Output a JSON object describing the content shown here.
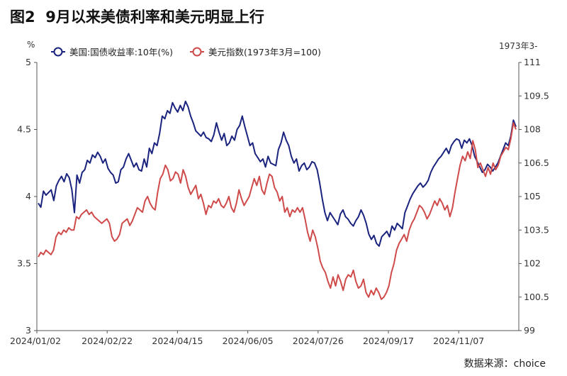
{
  "header": {
    "title": "图2  9月以来美债利率和美元明显上行"
  },
  "footer": {
    "source": "数据来源：choice"
  },
  "colors": {
    "series1": "#1a237e",
    "series2": "#cf4a4a",
    "axis": "#555555"
  },
  "chart_data": {
    "type": "line",
    "title": "图2  9月以来美债利率和美元明显上行",
    "y_left_unit": "%",
    "y_right_unit": "1973年3-",
    "x_ticks": [
      "2024/01/02",
      "2024/02/22",
      "2024/04/15",
      "2024/06/05",
      "2024/07/26",
      "2024/09/17",
      "2024/11/07"
    ],
    "ylim_left": [
      3,
      5
    ],
    "yticks_left": [
      "3",
      "3.5",
      "4",
      "4.5",
      "5"
    ],
    "ylim_right": [
      99,
      111
    ],
    "yticks_right": [
      "99",
      "100.5",
      "102",
      "103.5",
      "105",
      "106.5",
      "108",
      "109.5",
      "111"
    ],
    "legend_position": "top-left",
    "grid": false,
    "series": [
      {
        "name": "美国:国债收益率:10年(%)",
        "axis": "left",
        "values": [
          3.95,
          3.92,
          4.04,
          4.01,
          4.03,
          4.05,
          3.97,
          4.08,
          4.12,
          4.15,
          4.11,
          4.17,
          4.14,
          4.05,
          3.88,
          4.16,
          4.1,
          4.18,
          4.2,
          4.27,
          4.25,
          4.31,
          4.29,
          4.33,
          4.3,
          4.25,
          4.28,
          4.21,
          4.18,
          4.16,
          4.1,
          4.11,
          4.2,
          4.22,
          4.28,
          4.32,
          4.27,
          4.22,
          4.25,
          4.2,
          4.19,
          4.28,
          4.22,
          4.36,
          4.32,
          4.4,
          4.38,
          4.47,
          4.6,
          4.58,
          4.64,
          4.62,
          4.7,
          4.66,
          4.63,
          4.68,
          4.64,
          4.71,
          4.67,
          4.6,
          4.55,
          4.49,
          4.47,
          4.45,
          4.48,
          4.44,
          4.43,
          4.41,
          4.46,
          4.55,
          4.48,
          4.42,
          4.47,
          4.38,
          4.4,
          4.45,
          4.42,
          4.5,
          4.53,
          4.6,
          4.52,
          4.45,
          4.38,
          4.4,
          4.32,
          4.29,
          4.26,
          4.28,
          4.22,
          4.3,
          4.25,
          4.24,
          4.23,
          4.35,
          4.4,
          4.48,
          4.42,
          4.38,
          4.3,
          4.25,
          4.28,
          4.19,
          4.23,
          4.25,
          4.2,
          4.22,
          4.26,
          4.25,
          4.2,
          4.1,
          3.98,
          3.88,
          3.82,
          3.88,
          3.85,
          3.82,
          3.79,
          3.87,
          3.9,
          3.85,
          3.83,
          3.8,
          3.78,
          3.82,
          3.85,
          3.9,
          3.86,
          3.8,
          3.72,
          3.68,
          3.71,
          3.65,
          3.63,
          3.7,
          3.72,
          3.74,
          3.7,
          3.78,
          3.75,
          3.8,
          3.78,
          3.76,
          3.88,
          3.93,
          3.98,
          4.02,
          4.05,
          4.08,
          4.1,
          4.07,
          4.09,
          4.12,
          4.18,
          4.22,
          4.25,
          4.28,
          4.3,
          4.33,
          4.36,
          4.32,
          4.38,
          4.41,
          4.43,
          4.42,
          4.36,
          4.42,
          4.4,
          4.43,
          4.38,
          4.3,
          4.26,
          4.22,
          4.18,
          4.2,
          4.24,
          4.22,
          4.19,
          4.22,
          4.25,
          4.3,
          4.35,
          4.4,
          4.38,
          4.45,
          4.57,
          4.52
        ]
      },
      {
        "name": "美元指数(1973年3月=100)",
        "axis": "right",
        "values": [
          102.3,
          102.5,
          102.4,
          102.6,
          102.5,
          102.4,
          102.6,
          103.2,
          103.4,
          103.3,
          103.5,
          103.4,
          103.6,
          103.5,
          103.5,
          104.1,
          104.0,
          104.2,
          104.3,
          104.4,
          104.2,
          104.3,
          104.1,
          104.0,
          103.9,
          103.8,
          103.9,
          104.0,
          103.8,
          103.2,
          103.0,
          103.1,
          103.3,
          103.8,
          103.9,
          104.0,
          103.7,
          103.9,
          104.2,
          104.5,
          104.4,
          104.3,
          104.8,
          105.0,
          104.7,
          104.5,
          104.4,
          105.2,
          105.8,
          106.0,
          106.4,
          106.2,
          105.7,
          105.8,
          106.1,
          106.0,
          105.6,
          106.2,
          105.9,
          105.4,
          105.1,
          105.3,
          105.5,
          104.9,
          105.1,
          104.7,
          104.2,
          104.6,
          104.5,
          104.8,
          104.7,
          104.9,
          104.6,
          104.5,
          104.7,
          105.0,
          104.5,
          104.3,
          104.7,
          105.3,
          104.9,
          104.6,
          104.8,
          105.0,
          105.4,
          105.8,
          105.5,
          105.9,
          105.3,
          105.1,
          105.6,
          106.0,
          105.9,
          105.4,
          105.2,
          104.8,
          105.0,
          104.3,
          104.5,
          104.1,
          104.4,
          104.3,
          104.5,
          104.3,
          104.5,
          104.0,
          103.4,
          103.0,
          103.5,
          103.2,
          102.7,
          102.1,
          101.8,
          101.6,
          101.2,
          100.9,
          101.4,
          101.0,
          101.5,
          101.2,
          100.8,
          101.3,
          101.5,
          101.4,
          101.7,
          101.2,
          100.9,
          101.0,
          101.3,
          100.7,
          100.5,
          100.8,
          100.6,
          100.9,
          100.7,
          100.4,
          100.5,
          100.7,
          101.0,
          101.6,
          102.0,
          102.6,
          102.9,
          103.1,
          103.3,
          103.0,
          103.5,
          103.8,
          104.0,
          104.3,
          104.6,
          104.5,
          104.3,
          104.0,
          104.2,
          104.5,
          104.8,
          104.6,
          104.9,
          104.7,
          104.4,
          104.6,
          104.1,
          104.5,
          105.2,
          105.8,
          106.4,
          106.8,
          106.6,
          107.0,
          106.7,
          107.5,
          107.1,
          106.3,
          106.5,
          106.2,
          105.9,
          106.3,
          106.0,
          106.5,
          106.2,
          106.4,
          106.8,
          107.0,
          107.2,
          107.1,
          107.6,
          108.3,
          108.0
        ]
      }
    ]
  }
}
